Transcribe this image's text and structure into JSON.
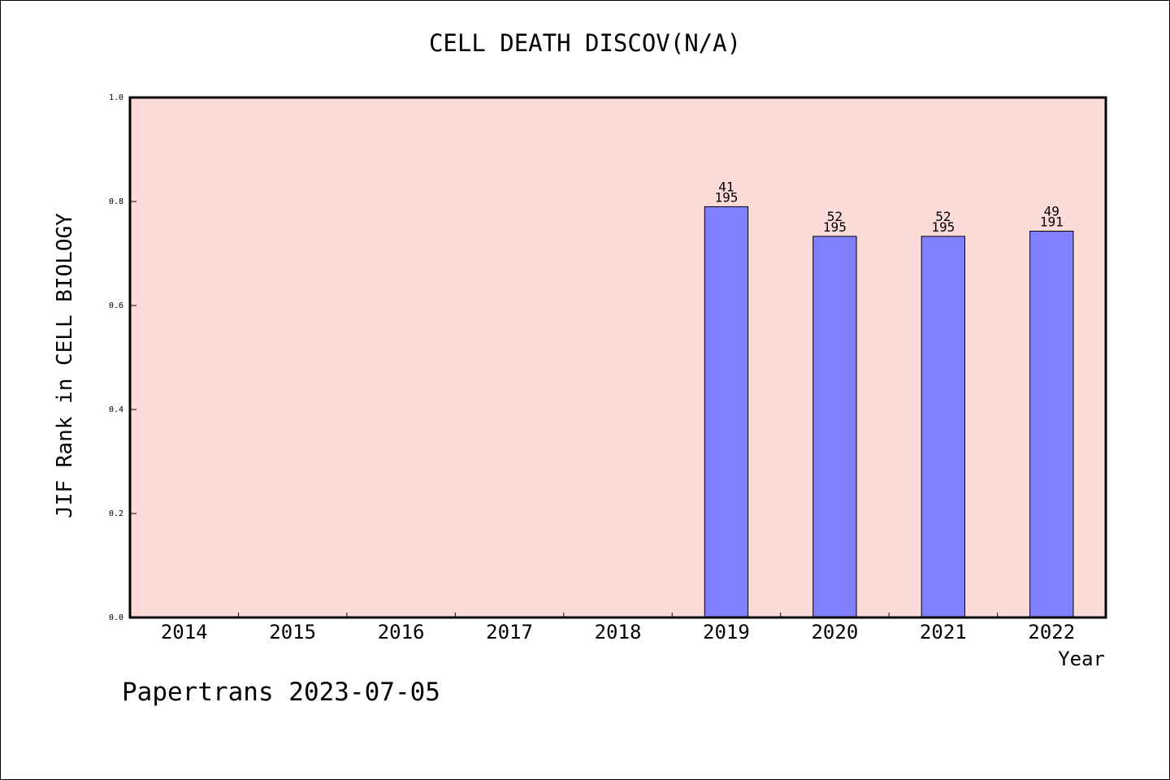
{
  "chart_data": {
    "type": "bar",
    "title": "CELL DEATH DISCOV(N/A)",
    "xlabel": "Year",
    "ylabel": "JIF Rank in CELL BIOLOGY",
    "ylim": [
      0,
      1
    ],
    "yticks": [
      "0.0",
      "0.2",
      "0.4",
      "0.6",
      "0.8",
      "1.0"
    ],
    "categories": [
      "2014",
      "2015",
      "2016",
      "2017",
      "2018",
      "2019",
      "2020",
      "2021",
      "2022"
    ],
    "values": [
      null,
      null,
      null,
      null,
      null,
      0.79,
      0.733,
      0.733,
      0.743
    ],
    "annotations": [
      null,
      null,
      null,
      null,
      null,
      {
        "rank": "41",
        "total": "195"
      },
      {
        "rank": "52",
        "total": "195"
      },
      {
        "rank": "52",
        "total": "195"
      },
      {
        "rank": "49",
        "total": "191"
      }
    ],
    "grid": false,
    "colors": {
      "plot_background": "#fddbd8",
      "bar_fill": "#8080ff",
      "bar_stroke": "#000000",
      "axis": "#000000"
    }
  },
  "footer": "Papertrans 2023-07-05"
}
